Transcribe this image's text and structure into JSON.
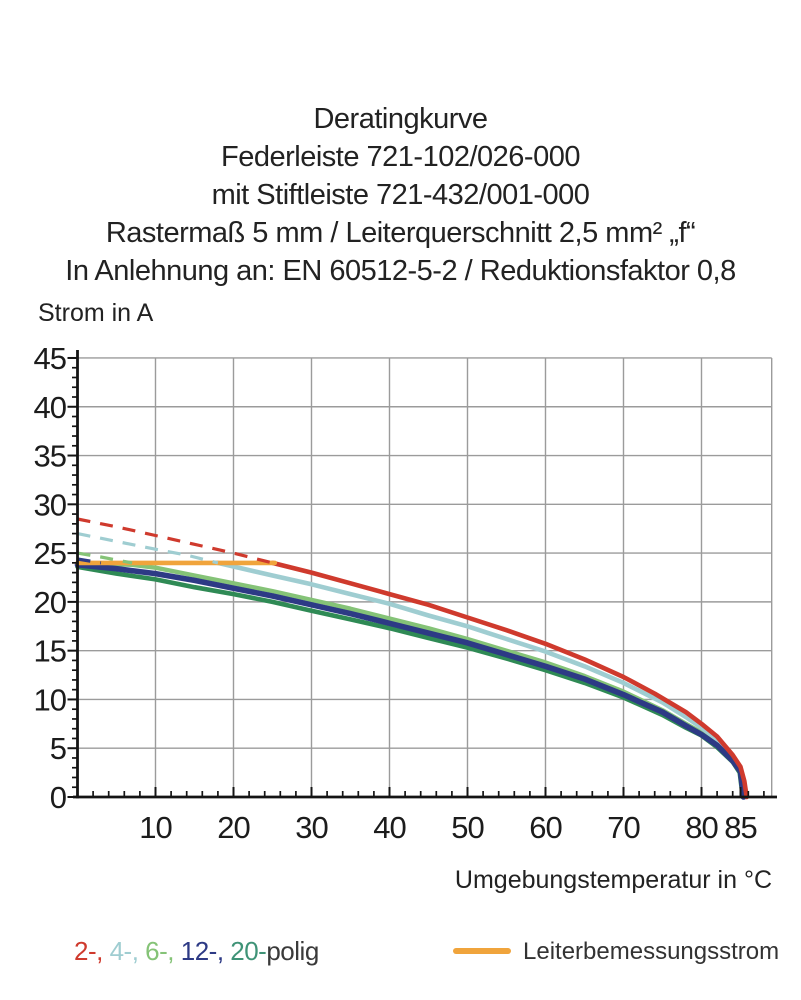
{
  "title": {
    "lines": [
      "Deratingkurve",
      "Federleiste 721-102/026-000",
      "mit Stiftleiste 721-432/001-000",
      "Rastermaß 5 mm / Leiterquerschnitt 2,5 mm² „f“",
      "In Anlehnung an: EN 60512-5-2 / Reduktionsfaktor 0,8"
    ]
  },
  "legend": {
    "poles": [
      {
        "text": "2-, ",
        "color": "#cf3a2d"
      },
      {
        "text": "4-, ",
        "color": "#9fcdd1"
      },
      {
        "text": "6-, ",
        "color": "#85c377"
      },
      {
        "text": "12-, ",
        "color": "#2d3a85"
      },
      {
        "text": "20-",
        "color": "#3f9377"
      },
      {
        "text": "polig",
        "color": "#3a3a3a"
      }
    ],
    "rated": {
      "label": "Leiterbemessungsstrom",
      "color": "#f0a43c"
    }
  },
  "chart_data": {
    "type": "line",
    "title": "Deratingkurve",
    "xlabel": "Umgebungstemperatur in °C",
    "ylabel": "Strom in A",
    "xlim": [
      0,
      89
    ],
    "ylim": [
      0,
      45
    ],
    "grid": true,
    "x_ticks_major": [
      10,
      20,
      30,
      40,
      50,
      60,
      70,
      80,
      85
    ],
    "x_grid": [
      10,
      20,
      30,
      40,
      50,
      60,
      70,
      80
    ],
    "x_minor_step": 2,
    "y_ticks_major": [
      0,
      5,
      10,
      15,
      20,
      25,
      30,
      35,
      40,
      45
    ],
    "y_minor_step": 1,
    "rated_current_A": 24,
    "series": [
      {
        "name": "2-polig",
        "color": "#cf3a2d",
        "width": 4.6,
        "z": 5,
        "dashed": [
          [
            0,
            28.5
          ],
          [
            5,
            27.7
          ],
          [
            10,
            26.8
          ],
          [
            15,
            25.9
          ],
          [
            20,
            25.0
          ],
          [
            25,
            24.0
          ]
        ],
        "solid": [
          [
            25,
            24.0
          ],
          [
            30,
            23.0
          ],
          [
            35,
            21.9
          ],
          [
            40,
            20.8
          ],
          [
            45,
            19.7
          ],
          [
            50,
            18.4
          ],
          [
            55,
            17.1
          ],
          [
            60,
            15.7
          ],
          [
            65,
            14.1
          ],
          [
            70,
            12.3
          ],
          [
            74,
            10.6
          ],
          [
            78,
            8.7
          ],
          [
            80,
            7.5
          ],
          [
            82,
            6.2
          ],
          [
            84,
            4.3
          ],
          [
            85,
            3.1
          ],
          [
            85.5,
            1.6
          ],
          [
            85.8,
            0
          ]
        ]
      },
      {
        "name": "4-polig",
        "color": "#9fcdd1",
        "width": 4.6,
        "z": 3,
        "dashed": [
          [
            0,
            27.0
          ],
          [
            5,
            26.2
          ],
          [
            10,
            25.4
          ],
          [
            14,
            24.8
          ],
          [
            18,
            24.0
          ]
        ],
        "solid": [
          [
            18,
            24.0
          ],
          [
            25,
            22.7
          ],
          [
            30,
            21.8
          ],
          [
            35,
            20.8
          ],
          [
            40,
            19.8
          ],
          [
            45,
            18.6
          ],
          [
            50,
            17.5
          ],
          [
            55,
            16.2
          ],
          [
            60,
            14.9
          ],
          [
            65,
            13.4
          ],
          [
            70,
            11.7
          ],
          [
            75,
            9.7
          ],
          [
            78,
            8.2
          ],
          [
            80,
            7.1
          ],
          [
            82,
            5.9
          ],
          [
            84,
            4.1
          ],
          [
            85,
            2.9
          ],
          [
            85.3,
            1.4
          ],
          [
            85.6,
            0
          ]
        ]
      },
      {
        "name": "6-polig",
        "color": "#85c377",
        "width": 4.4,
        "z": 2,
        "dashed": [
          [
            0,
            25.0
          ],
          [
            3,
            24.6
          ],
          [
            7,
            24.0
          ]
        ],
        "solid": [
          [
            0,
            23.95
          ],
          [
            7,
            23.8
          ],
          [
            10,
            23.5
          ],
          [
            15,
            22.7
          ],
          [
            20,
            21.9
          ],
          [
            25,
            21.1
          ],
          [
            30,
            20.2
          ],
          [
            35,
            19.3
          ],
          [
            40,
            18.3
          ],
          [
            45,
            17.3
          ],
          [
            50,
            16.2
          ],
          [
            55,
            15.0
          ],
          [
            60,
            13.8
          ],
          [
            65,
            12.4
          ],
          [
            70,
            10.8
          ],
          [
            75,
            8.9
          ],
          [
            78,
            7.5
          ],
          [
            80,
            6.6
          ],
          [
            82,
            5.4
          ],
          [
            84,
            3.8
          ],
          [
            85,
            2.7
          ],
          [
            85.2,
            1.3
          ],
          [
            85.5,
            0
          ]
        ]
      },
      {
        "name": "12-polig",
        "color": "#2d3a85",
        "width": 5.6,
        "z": 4,
        "dashed": [
          [
            0,
            24.4
          ],
          [
            3,
            24.0
          ]
        ],
        "solid": [
          [
            0,
            23.8
          ],
          [
            5,
            23.4
          ],
          [
            10,
            22.9
          ],
          [
            15,
            22.2
          ],
          [
            20,
            21.4
          ],
          [
            25,
            20.6
          ],
          [
            30,
            19.7
          ],
          [
            35,
            18.8
          ],
          [
            40,
            17.8
          ],
          [
            45,
            16.8
          ],
          [
            50,
            15.8
          ],
          [
            55,
            14.6
          ],
          [
            60,
            13.4
          ],
          [
            65,
            12.1
          ],
          [
            70,
            10.5
          ],
          [
            75,
            8.7
          ],
          [
            78,
            7.3
          ],
          [
            80,
            6.4
          ],
          [
            82,
            5.3
          ],
          [
            84,
            3.7
          ],
          [
            85,
            2.6
          ],
          [
            85.2,
            1.2
          ],
          [
            85.4,
            0
          ]
        ]
      },
      {
        "name": "20-polig",
        "color": "#2f8a55",
        "width": 4.6,
        "z": 1,
        "dashed": [],
        "solid": [
          [
            0,
            23.6
          ],
          [
            5,
            22.9
          ],
          [
            10,
            22.3
          ],
          [
            15,
            21.5
          ],
          [
            20,
            20.8
          ],
          [
            25,
            20.0
          ],
          [
            30,
            19.1
          ],
          [
            35,
            18.2
          ],
          [
            40,
            17.3
          ],
          [
            45,
            16.3
          ],
          [
            50,
            15.3
          ],
          [
            55,
            14.2
          ],
          [
            60,
            13.0
          ],
          [
            65,
            11.7
          ],
          [
            70,
            10.2
          ],
          [
            75,
            8.4
          ],
          [
            78,
            7.1
          ],
          [
            80,
            6.3
          ],
          [
            82,
            5.1
          ],
          [
            84,
            3.6
          ],
          [
            84.9,
            2.5
          ],
          [
            85.1,
            1.2
          ],
          [
            85.3,
            0
          ]
        ]
      },
      {
        "name": "Leiterbemessungsstrom",
        "color": "#f0a43c",
        "width": 4.6,
        "z": 6,
        "dashed": [],
        "solid": [
          [
            0,
            24
          ],
          [
            25.3,
            24
          ]
        ]
      }
    ]
  }
}
